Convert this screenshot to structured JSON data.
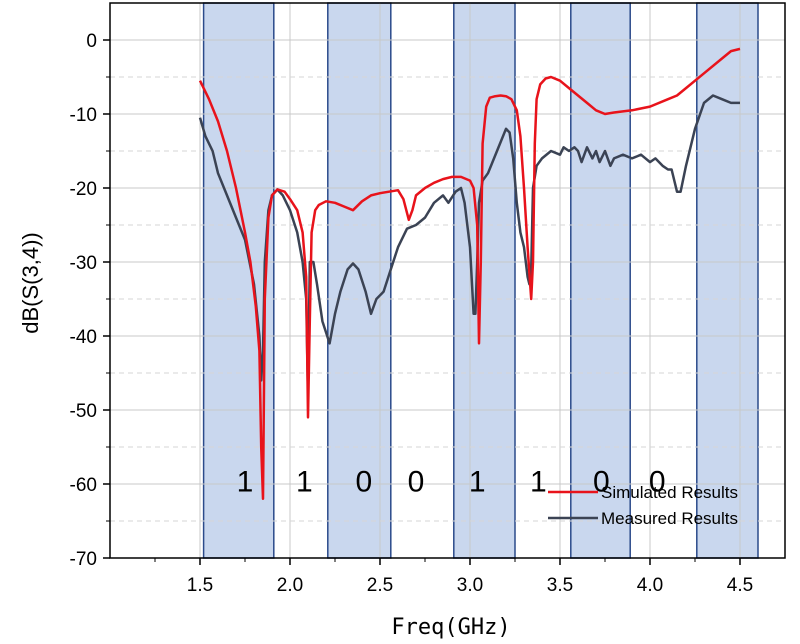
{
  "chart_data": {
    "type": "line",
    "title": "",
    "xlabel": "Freq(GHz)",
    "ylabel": "dB(S(3,4))",
    "xlim": [
      1.0,
      4.75
    ],
    "ylim": [
      -70,
      5
    ],
    "xticks": [
      1.5,
      2.0,
      2.5,
      3.0,
      3.5,
      4.0,
      4.5
    ],
    "yticks": [
      0,
      -10,
      -20,
      -30,
      -40,
      -50,
      -60,
      -70
    ],
    "grid": true,
    "legend_position": "bottom-right",
    "bands": [
      {
        "x0": 1.52,
        "x1": 1.91,
        "label": "1"
      },
      {
        "x0": 2.21,
        "x1": 2.56,
        "label": "1"
      },
      {
        "x0": 2.91,
        "x1": 3.25,
        "label": "0"
      },
      {
        "x0": 3.56,
        "x1": 3.89,
        "label": "0"
      },
      {
        "x0": 4.26,
        "x1": 4.6,
        "label": "1"
      }
    ],
    "band_labels": [
      {
        "text": "1",
        "x": 1.75,
        "y": -61
      },
      {
        "text": "1",
        "x": 2.08,
        "y": -61
      },
      {
        "text": "0",
        "x": 2.41,
        "y": -61
      },
      {
        "text": "0",
        "x": 2.7,
        "y": -61
      },
      {
        "text": "1",
        "x": 3.04,
        "y": -61
      },
      {
        "text": "1",
        "x": 3.38,
        "y": -61
      },
      {
        "text": "0",
        "x": 3.73,
        "y": -61
      },
      {
        "text": "0",
        "x": 4.04,
        "y": -61
      }
    ],
    "series": [
      {
        "name": "Simulated Results",
        "color": "#e8131b",
        "x": [
          1.5,
          1.55,
          1.6,
          1.65,
          1.7,
          1.75,
          1.78,
          1.81,
          1.83,
          1.84,
          1.85,
          1.86,
          1.88,
          1.9,
          1.93,
          1.97,
          2.0,
          2.04,
          2.07,
          2.09,
          2.1,
          2.11,
          2.12,
          2.14,
          2.16,
          2.2,
          2.25,
          2.3,
          2.35,
          2.4,
          2.45,
          2.5,
          2.55,
          2.6,
          2.63,
          2.66,
          2.68,
          2.7,
          2.75,
          2.8,
          2.85,
          2.9,
          2.95,
          3.0,
          3.02,
          3.04,
          3.05,
          3.06,
          3.07,
          3.09,
          3.11,
          3.14,
          3.17,
          3.2,
          3.23,
          3.26,
          3.28,
          3.3,
          3.32,
          3.34,
          3.35,
          3.36,
          3.37,
          3.39,
          3.42,
          3.45,
          3.5,
          3.55,
          3.6,
          3.65,
          3.7,
          3.75,
          3.8,
          3.9,
          4.0,
          4.1,
          4.15,
          4.2,
          4.3,
          4.4,
          4.45,
          4.5
        ],
        "y": [
          -5.5,
          -8,
          -11,
          -15,
          -20,
          -26,
          -30,
          -36,
          -42,
          -55,
          -62,
          -35,
          -24,
          -21,
          -20.2,
          -20.5,
          -21.5,
          -23,
          -26,
          -32,
          -51,
          -38,
          -26,
          -23,
          -22.3,
          -21.8,
          -22,
          -22.5,
          -23,
          -21.8,
          -21,
          -20.7,
          -20.5,
          -20.3,
          -21.5,
          -24.3,
          -23,
          -21,
          -20,
          -19.3,
          -18.8,
          -18.5,
          -18.5,
          -19,
          -20,
          -25,
          -41,
          -30,
          -14,
          -9,
          -7.8,
          -7.6,
          -7.5,
          -7.6,
          -8,
          -9.5,
          -13,
          -20,
          -28,
          -35,
          -30,
          -14,
          -8,
          -6,
          -5.2,
          -5,
          -5.5,
          -6.5,
          -7.5,
          -8.5,
          -9.5,
          -10,
          -9.8,
          -9.5,
          -9,
          -8,
          -7.5,
          -6.5,
          -4.5,
          -2.5,
          -1.5,
          -1.2
        ]
      },
      {
        "name": "Measured Results",
        "color": "#3b4354",
        "x": [
          1.5,
          1.53,
          1.57,
          1.6,
          1.65,
          1.7,
          1.75,
          1.8,
          1.83,
          1.84,
          1.85,
          1.86,
          1.88,
          1.9,
          1.93,
          1.96,
          2.0,
          2.04,
          2.07,
          2.09,
          2.1,
          2.11,
          2.13,
          2.15,
          2.18,
          2.22,
          2.25,
          2.28,
          2.32,
          2.35,
          2.38,
          2.42,
          2.45,
          2.48,
          2.52,
          2.56,
          2.6,
          2.65,
          2.7,
          2.75,
          2.8,
          2.85,
          2.88,
          2.92,
          2.95,
          2.97,
          3.0,
          3.02,
          3.03,
          3.04,
          3.05,
          3.07,
          3.1,
          3.15,
          3.2,
          3.22,
          3.24,
          3.26,
          3.28,
          3.3,
          3.32,
          3.33,
          3.34,
          3.35,
          3.37,
          3.4,
          3.45,
          3.5,
          3.52,
          3.55,
          3.58,
          3.6,
          3.62,
          3.65,
          3.68,
          3.7,
          3.72,
          3.75,
          3.78,
          3.8,
          3.85,
          3.9,
          3.95,
          4.0,
          4.03,
          4.07,
          4.1,
          4.12,
          4.15,
          4.17,
          4.2,
          4.25,
          4.3,
          4.35,
          4.4,
          4.45,
          4.5
        ],
        "y": [
          -10.5,
          -13,
          -15,
          -18,
          -21,
          -24,
          -27,
          -33,
          -40,
          -46,
          -42,
          -30,
          -23,
          -21,
          -20.2,
          -21,
          -23,
          -26,
          -30,
          -35,
          -48,
          -30,
          -30,
          -33,
          -38,
          -41,
          -37,
          -34,
          -31,
          -30.2,
          -31,
          -34,
          -37,
          -35,
          -34,
          -31,
          -28,
          -25.5,
          -25,
          -24,
          -22,
          -21,
          -22,
          -20.5,
          -20,
          -22,
          -28,
          -37,
          -37,
          -30,
          -22,
          -19,
          -18,
          -15,
          -12,
          -12.5,
          -16,
          -22,
          -26,
          -28,
          -32,
          -33,
          -31,
          -20,
          -17,
          -16,
          -15,
          -15.5,
          -14.5,
          -15,
          -14.5,
          -15,
          -16.5,
          -14.5,
          -16,
          -15,
          -16.5,
          -15,
          -17,
          -16,
          -15.5,
          -16,
          -15.5,
          -16.5,
          -16,
          -17,
          -17.5,
          -17.5,
          -20.5,
          -20.5,
          -17,
          -12,
          -8.5,
          -7.5,
          -8,
          -8.5,
          -8.5
        ]
      }
    ]
  }
}
